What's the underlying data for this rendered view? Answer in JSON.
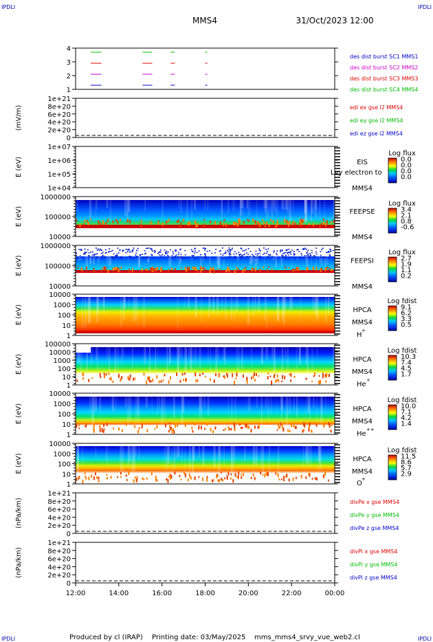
{
  "header": {
    "corner_label": "IPDLI",
    "spacecraft": "MMS4",
    "date_time": "31/Oct/2023 12:00"
  },
  "footer": {
    "produced_by": "Produced by cl (IRAP)",
    "printing_date": "Printing date: 03/May/2025",
    "script_name": "mms_mms4_srvy_vue_web2.cl"
  },
  "x_axis": {
    "ticks": [
      "12:00",
      "14:00",
      "16:00",
      "18:00",
      "20:00",
      "22:00",
      "00:00"
    ]
  },
  "colors": {
    "red": "#dd0000",
    "green": "#00bb00",
    "blue": "#0000cc",
    "magenta": "#cc00cc",
    "baseline": "#cc0000"
  },
  "chart_data": [
    {
      "type": "line",
      "name": "burst",
      "ylim": [
        1,
        4
      ],
      "yticks": [
        "4",
        "3",
        "2",
        "1"
      ],
      "legend": [
        {
          "text": "des dist burst SC1 MMS1",
          "color": "#0000cc"
        },
        {
          "text": "des dist burst SC2 MMS2",
          "color": "#cc00cc"
        },
        {
          "text": "des dist burst SC3 MMS3",
          "color": "#dd0000"
        },
        {
          "text": "des dist burst SC4 MMS4",
          "color": "#00bb00"
        }
      ],
      "series": [
        {
          "level": 4,
          "color": "#00bb00",
          "segments": [
            [
              0.7,
              1.2
            ],
            [
              3.1,
              3.55
            ],
            [
              4.4,
              4.6
            ],
            [
              6.0,
              6.1
            ]
          ]
        },
        {
          "level": 3,
          "color": "#dd0000",
          "segments": [
            [
              0.7,
              1.2
            ],
            [
              3.1,
              3.55
            ],
            [
              4.4,
              4.6
            ],
            [
              6.0,
              6.1
            ]
          ]
        },
        {
          "level": 2,
          "color": "#cc00cc",
          "segments": [
            [
              0.7,
              1.2
            ],
            [
              3.1,
              3.55
            ],
            [
              4.4,
              4.6
            ],
            [
              6.0,
              6.1
            ]
          ]
        },
        {
          "level": 1,
          "color": "#0000cc",
          "segments": [
            [
              0.7,
              1.2
            ],
            [
              3.1,
              3.55
            ],
            [
              4.4,
              4.6
            ],
            [
              6.0,
              6.1
            ]
          ]
        }
      ]
    },
    {
      "type": "line",
      "name": "edi",
      "ylabel": "(mV/m)",
      "yticks": [
        "1e+21",
        "8e+20",
        "6e+20",
        "4e+20",
        "2e+20",
        "0"
      ],
      "legend": [
        {
          "text": "edi ex gse l2 MMS4",
          "color": "#dd0000"
        },
        {
          "text": "edi ey gse l2 MMS4",
          "color": "#00bb00"
        },
        {
          "text": "edi ez gse l2 MMS4",
          "color": "#0000cc"
        }
      ]
    },
    {
      "type": "heatmap",
      "name": "eis",
      "ylabel": "E (eV)",
      "yticks": [
        "1e+07",
        "1e+06",
        "1e+05",
        "1e+04"
      ],
      "labels": [
        "EIS",
        "MMS4"
      ],
      "overlay": "Lvy electron to",
      "colorbar": {
        "title": "Log flux",
        "ticks": [
          "0.0",
          "0.0",
          "0.0",
          "0.0"
        ]
      }
    },
    {
      "type": "heatmap",
      "name": "feepse",
      "ylabel": "E (eV)",
      "yticks": [
        "1000000",
        "100000",
        "10000"
      ],
      "labels": [
        "FEEPSE",
        "MMS4"
      ],
      "colorbar": {
        "title": "Log flux",
        "ticks": [
          "3.4",
          "2.1",
          "0.8",
          "-0.6"
        ]
      }
    },
    {
      "type": "heatmap",
      "name": "feepsi",
      "ylabel": "E (eV)",
      "yticks": [
        "1000000",
        "100000",
        "10000"
      ],
      "labels": [
        "FEEPSI",
        "MMS4"
      ],
      "colorbar": {
        "title": "Log flux",
        "ticks": [
          "2.7",
          "1.9",
          "1.1",
          "0.2"
        ]
      }
    },
    {
      "type": "heatmap",
      "name": "hpca-h",
      "ylabel": "E (eV)",
      "yticks": [
        "10000",
        "1000",
        "100",
        "10",
        "1"
      ],
      "labels": [
        "HPCA",
        "MMS4"
      ],
      "species": "H",
      "species_sup": "+",
      "colorbar": {
        "title": "Log fdist",
        "ticks": [
          "9.1",
          "6.2",
          "3.3",
          "0.5"
        ]
      }
    },
    {
      "type": "heatmap",
      "name": "hpca-he",
      "ylabel": "E (eV)",
      "yticks": [
        "100000",
        "10000",
        "1000",
        "100",
        "10",
        "1"
      ],
      "labels": [
        "HPCA",
        "MMS4"
      ],
      "species": "He",
      "species_sup": "+",
      "colorbar": {
        "title": "Log fdist",
        "ticks": [
          "10.3",
          "7.4",
          "4.5",
          "1.7"
        ]
      }
    },
    {
      "type": "heatmap",
      "name": "hpca-he2",
      "ylabel": "E (eV)",
      "yticks": [
        "10000",
        "1000",
        "100",
        "10",
        "1"
      ],
      "labels": [
        "HPCA",
        "MMS4"
      ],
      "species": "He",
      "species_sup": "++",
      "colorbar": {
        "title": "Log fdist",
        "ticks": [
          "10.0",
          "7.1",
          "4.2",
          "1.4"
        ]
      }
    },
    {
      "type": "heatmap",
      "name": "hpca-o",
      "ylabel": "E (eV)",
      "yticks": [
        "10000",
        "1000",
        "100",
        "10",
        "1"
      ],
      "labels": [
        "HPCA",
        "MMS4"
      ],
      "species": "O",
      "species_sup": "+",
      "colorbar": {
        "title": "Log fdist",
        "ticks": [
          "11.5",
          "8.6",
          "5.7",
          "2.9"
        ]
      }
    },
    {
      "type": "line",
      "name": "divpe",
      "ylabel": "(nPa/km)",
      "yticks": [
        "1e+21",
        "8e+20",
        "6e+20",
        "4e+20",
        "2e+20",
        "0"
      ],
      "legend": [
        {
          "text": "divPe x gse MMS4",
          "color": "#dd0000"
        },
        {
          "text": "divPe y gse MMS4",
          "color": "#00bb00"
        },
        {
          "text": "divPe z gse MMS4",
          "color": "#0000cc"
        }
      ]
    },
    {
      "type": "line",
      "name": "divpi",
      "ylabel": "(nPa/km)",
      "yticks": [
        "1e+21",
        "8e+20",
        "6e+20",
        "4e+20",
        "2e+20",
        "0"
      ],
      "legend": [
        {
          "text": "divPi x gse MMS4",
          "color": "#dd0000"
        },
        {
          "text": "divPi y gse MMS4",
          "color": "#00bb00"
        },
        {
          "text": "divPi z gse MMS4",
          "color": "#0000cc"
        }
      ]
    }
  ]
}
